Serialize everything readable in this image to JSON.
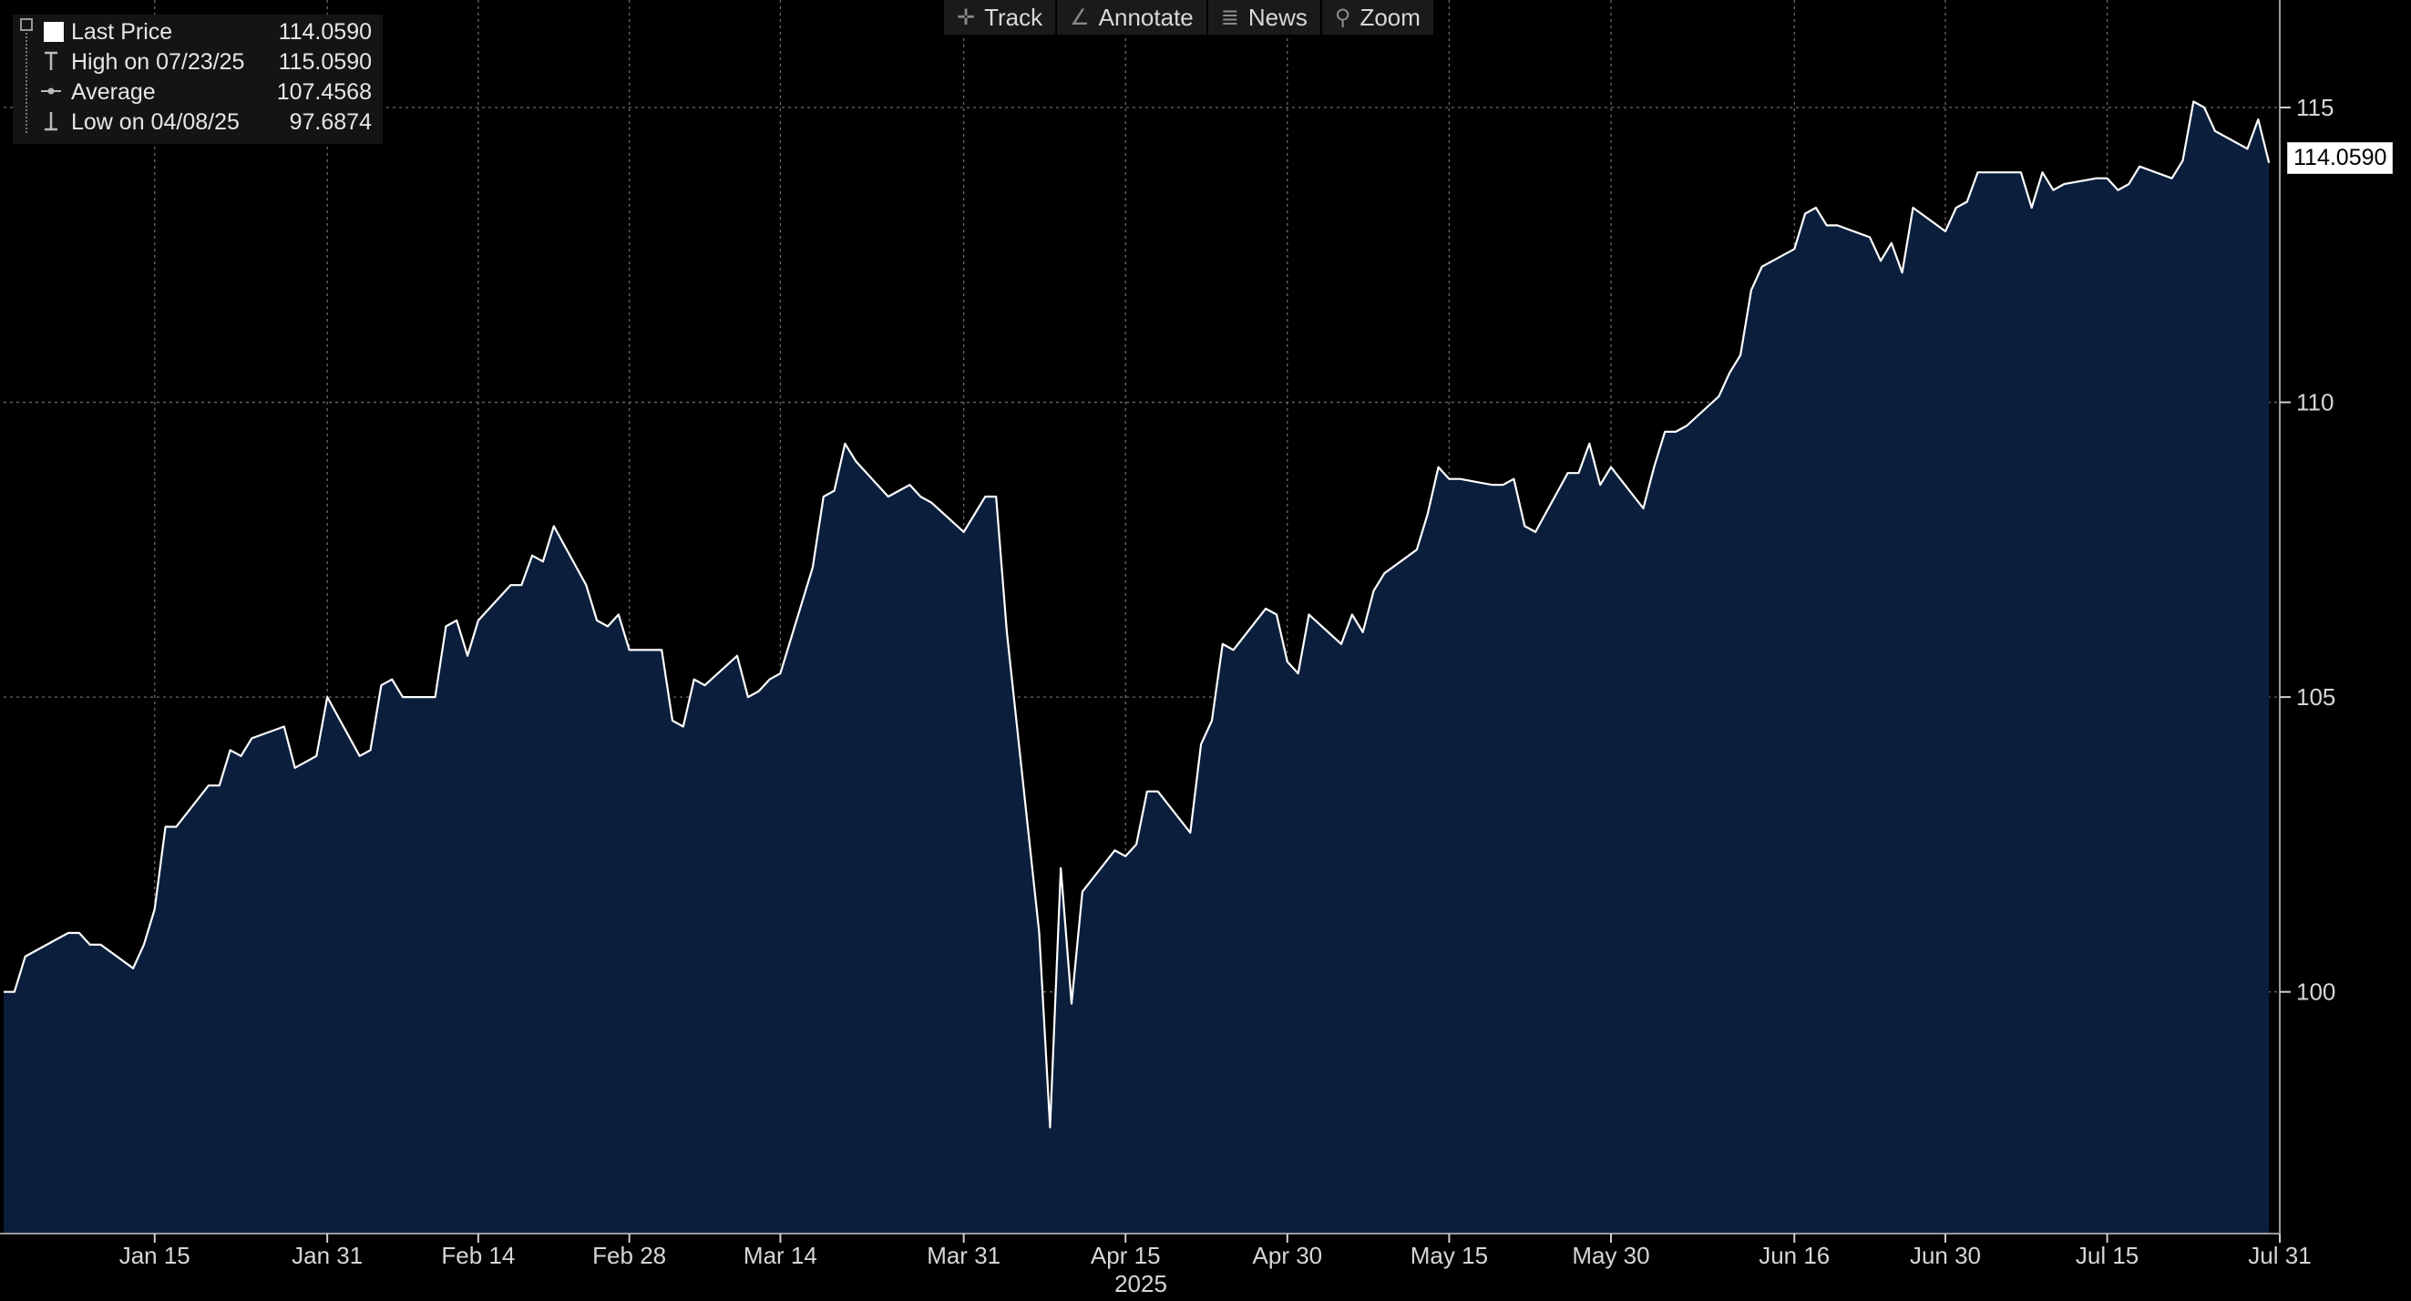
{
  "toolbar": {
    "track_label": "Track",
    "annotate_label": "Annotate",
    "news_label": "News",
    "zoom_label": "Zoom"
  },
  "legend": {
    "last_price_label": "Last Price",
    "last_price_value": "114.0590",
    "high_label": "High on 07/23/25",
    "high_value": "115.0590",
    "average_label": "Average",
    "average_value": "107.4568",
    "low_label": "Low on 04/08/25",
    "low_value": "97.6874"
  },
  "last_value_tag": "114.0590",
  "colors": {
    "background": "#000000",
    "area_fill": "#0b1f3d",
    "line": "#ffffff",
    "grid": "#6a6a6a"
  },
  "chart_data": {
    "type": "area",
    "title": "",
    "xlabel": "2025",
    "ylabel": "",
    "xlim": [
      "2025-01-01",
      "2025-07-31"
    ],
    "ylim": [
      95.9,
      116.7
    ],
    "grid": true,
    "y_axis_position": "right",
    "legend_position": "top-left",
    "y_ticks": [
      100,
      105,
      110,
      115
    ],
    "x_ticks": [
      {
        "date": "2025-01-15",
        "label": "Jan 15"
      },
      {
        "date": "2025-01-31",
        "label": "Jan 31"
      },
      {
        "date": "2025-02-14",
        "label": "Feb 14"
      },
      {
        "date": "2025-02-28",
        "label": "Feb 28"
      },
      {
        "date": "2025-03-14",
        "label": "Mar 14"
      },
      {
        "date": "2025-03-31",
        "label": "Mar 31"
      },
      {
        "date": "2025-04-15",
        "label": "Apr 15"
      },
      {
        "date": "2025-04-30",
        "label": "Apr 30"
      },
      {
        "date": "2025-05-15",
        "label": "May 15"
      },
      {
        "date": "2025-05-30",
        "label": "May 30"
      },
      {
        "date": "2025-06-16",
        "label": "Jun 16"
      },
      {
        "date": "2025-06-30",
        "label": "Jun 30"
      },
      {
        "date": "2025-07-15",
        "label": "Jul 15"
      },
      {
        "date": "2025-07-31",
        "label": "Jul 31"
      }
    ],
    "series": [
      {
        "values": [
          [
            "2025-01-01",
            100.0
          ],
          [
            "2025-01-02",
            100.0
          ],
          [
            "2025-01-03",
            100.6
          ],
          [
            "2025-01-06",
            100.9
          ],
          [
            "2025-01-07",
            101.0
          ],
          [
            "2025-01-08",
            101.0
          ],
          [
            "2025-01-09",
            100.8
          ],
          [
            "2025-01-10",
            100.8
          ],
          [
            "2025-01-13",
            100.4
          ],
          [
            "2025-01-14",
            100.8
          ],
          [
            "2025-01-15",
            101.4
          ],
          [
            "2025-01-16",
            102.8
          ],
          [
            "2025-01-17",
            102.8
          ],
          [
            "2025-01-20",
            103.5
          ],
          [
            "2025-01-21",
            103.5
          ],
          [
            "2025-01-22",
            104.1
          ],
          [
            "2025-01-23",
            104.0
          ],
          [
            "2025-01-24",
            104.3
          ],
          [
            "2025-01-27",
            104.5
          ],
          [
            "2025-01-28",
            103.8
          ],
          [
            "2025-01-29",
            103.9
          ],
          [
            "2025-01-30",
            104.0
          ],
          [
            "2025-01-31",
            105.0
          ],
          [
            "2025-02-03",
            104.0
          ],
          [
            "2025-02-04",
            104.1
          ],
          [
            "2025-02-05",
            105.2
          ],
          [
            "2025-02-06",
            105.3
          ],
          [
            "2025-02-07",
            105.0
          ],
          [
            "2025-02-10",
            105.0
          ],
          [
            "2025-02-11",
            106.2
          ],
          [
            "2025-02-12",
            106.3
          ],
          [
            "2025-02-13",
            105.7
          ],
          [
            "2025-02-14",
            106.3
          ],
          [
            "2025-02-17",
            106.9
          ],
          [
            "2025-02-18",
            106.9
          ],
          [
            "2025-02-19",
            107.4
          ],
          [
            "2025-02-20",
            107.3
          ],
          [
            "2025-02-21",
            107.9
          ],
          [
            "2025-02-24",
            106.9
          ],
          [
            "2025-02-25",
            106.3
          ],
          [
            "2025-02-26",
            106.2
          ],
          [
            "2025-02-27",
            106.4
          ],
          [
            "2025-02-28",
            105.8
          ],
          [
            "2025-03-03",
            105.8
          ],
          [
            "2025-03-04",
            104.6
          ],
          [
            "2025-03-05",
            104.5
          ],
          [
            "2025-03-06",
            105.3
          ],
          [
            "2025-03-07",
            105.2
          ],
          [
            "2025-03-10",
            105.7
          ],
          [
            "2025-03-11",
            105.0
          ],
          [
            "2025-03-12",
            105.1
          ],
          [
            "2025-03-13",
            105.3
          ],
          [
            "2025-03-14",
            105.4
          ],
          [
            "2025-03-17",
            107.2
          ],
          [
            "2025-03-18",
            108.4
          ],
          [
            "2025-03-19",
            108.5
          ],
          [
            "2025-03-20",
            109.3
          ],
          [
            "2025-03-21",
            109.0
          ],
          [
            "2025-03-24",
            108.4
          ],
          [
            "2025-03-25",
            108.5
          ],
          [
            "2025-03-26",
            108.6
          ],
          [
            "2025-03-27",
            108.4
          ],
          [
            "2025-03-28",
            108.3
          ],
          [
            "2025-03-31",
            107.8
          ],
          [
            "2025-04-01",
            108.1
          ],
          [
            "2025-04-02",
            108.4
          ],
          [
            "2025-04-03",
            108.4
          ],
          [
            "2025-04-04",
            106.1
          ],
          [
            "2025-04-07",
            101.0
          ],
          [
            "2025-04-08",
            97.7
          ],
          [
            "2025-04-09",
            102.1
          ],
          [
            "2025-04-10",
            99.8
          ],
          [
            "2025-04-11",
            101.7
          ],
          [
            "2025-04-14",
            102.4
          ],
          [
            "2025-04-15",
            102.3
          ],
          [
            "2025-04-16",
            102.5
          ],
          [
            "2025-04-17",
            103.4
          ],
          [
            "2025-04-18",
            103.4
          ],
          [
            "2025-04-21",
            102.7
          ],
          [
            "2025-04-22",
            104.2
          ],
          [
            "2025-04-23",
            104.6
          ],
          [
            "2025-04-24",
            105.9
          ],
          [
            "2025-04-25",
            105.8
          ],
          [
            "2025-04-28",
            106.5
          ],
          [
            "2025-04-29",
            106.4
          ],
          [
            "2025-04-30",
            105.6
          ],
          [
            "2025-05-01",
            105.4
          ],
          [
            "2025-05-02",
            106.4
          ],
          [
            "2025-05-05",
            105.9
          ],
          [
            "2025-05-06",
            106.4
          ],
          [
            "2025-05-07",
            106.1
          ],
          [
            "2025-05-08",
            106.8
          ],
          [
            "2025-05-09",
            107.1
          ],
          [
            "2025-05-12",
            107.5
          ],
          [
            "2025-05-13",
            108.1
          ],
          [
            "2025-05-14",
            108.9
          ],
          [
            "2025-05-15",
            108.7
          ],
          [
            "2025-05-16",
            108.7
          ],
          [
            "2025-05-19",
            108.6
          ],
          [
            "2025-05-20",
            108.6
          ],
          [
            "2025-05-21",
            108.7
          ],
          [
            "2025-05-22",
            107.9
          ],
          [
            "2025-05-23",
            107.8
          ],
          [
            "2025-05-26",
            108.8
          ],
          [
            "2025-05-27",
            108.8
          ],
          [
            "2025-05-28",
            109.3
          ],
          [
            "2025-05-29",
            108.6
          ],
          [
            "2025-05-30",
            108.9
          ],
          [
            "2025-06-02",
            108.2
          ],
          [
            "2025-06-03",
            108.9
          ],
          [
            "2025-06-04",
            109.5
          ],
          [
            "2025-06-05",
            109.5
          ],
          [
            "2025-06-06",
            109.6
          ],
          [
            "2025-06-09",
            110.1
          ],
          [
            "2025-06-10",
            110.5
          ],
          [
            "2025-06-11",
            110.8
          ],
          [
            "2025-06-12",
            111.9
          ],
          [
            "2025-06-13",
            112.3
          ],
          [
            "2025-06-16",
            112.6
          ],
          [
            "2025-06-17",
            113.2
          ],
          [
            "2025-06-18",
            113.3
          ],
          [
            "2025-06-19",
            113.0
          ],
          [
            "2025-06-20",
            113.0
          ],
          [
            "2025-06-23",
            112.8
          ],
          [
            "2025-06-24",
            112.4
          ],
          [
            "2025-06-25",
            112.7
          ],
          [
            "2025-06-26",
            112.2
          ],
          [
            "2025-06-27",
            113.3
          ],
          [
            "2025-06-30",
            112.9
          ],
          [
            "2025-07-01",
            113.3
          ],
          [
            "2025-07-02",
            113.4
          ],
          [
            "2025-07-03",
            113.9
          ],
          [
            "2025-07-04",
            113.9
          ],
          [
            "2025-07-07",
            113.9
          ],
          [
            "2025-07-08",
            113.3
          ],
          [
            "2025-07-09",
            113.9
          ],
          [
            "2025-07-10",
            113.6
          ],
          [
            "2025-07-11",
            113.7
          ],
          [
            "2025-07-14",
            113.8
          ],
          [
            "2025-07-15",
            113.8
          ],
          [
            "2025-07-16",
            113.6
          ],
          [
            "2025-07-17",
            113.7
          ],
          [
            "2025-07-18",
            114.0
          ],
          [
            "2025-07-21",
            113.8
          ],
          [
            "2025-07-22",
            114.1
          ],
          [
            "2025-07-23",
            115.1
          ],
          [
            "2025-07-24",
            115.0
          ],
          [
            "2025-07-25",
            114.6
          ],
          [
            "2025-07-28",
            114.3
          ],
          [
            "2025-07-29",
            114.8
          ],
          [
            "2025-07-30",
            114.06
          ]
        ]
      }
    ]
  }
}
